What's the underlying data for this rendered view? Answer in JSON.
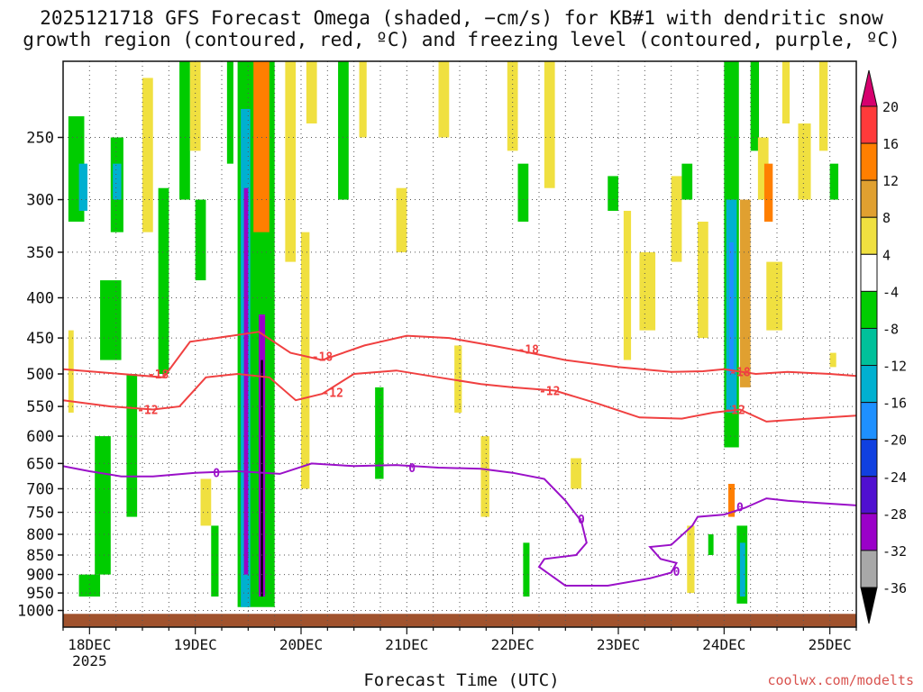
{
  "chart_data": {
    "type": "heatmap",
    "title_line1": "2025121718 GFS Forecast Omega (shaded, −cm/s) for KB#1 with dendritic snow",
    "title_line2": "growth region (contoured, red, ºC) and freezing level (contoured, purple, ºC)",
    "xlabel": "Forecast Time (UTC)",
    "x_ticks": [
      "18DEC",
      "19DEC",
      "20DEC",
      "21DEC",
      "22DEC",
      "23DEC",
      "24DEC",
      "25DEC"
    ],
    "x_tick_year": "2025",
    "x_range_days": [
      17.75,
      25.25
    ],
    "y_scale": "log",
    "y_range": [
      200,
      1050
    ],
    "y_ticks": [
      250,
      300,
      350,
      400,
      450,
      500,
      550,
      600,
      650,
      700,
      750,
      800,
      850,
      900,
      950,
      1000
    ],
    "y_tick_labels": [
      "250",
      "300",
      "350",
      "400",
      "450",
      "500",
      "550",
      "600",
      "650",
      "700",
      "750",
      "800",
      "850",
      "900",
      "950",
      "1000"
    ],
    "grid": true,
    "colorbar": {
      "levels": [
        -36,
        -32,
        -28,
        -24,
        -20,
        -16,
        -12,
        -8,
        -4,
        4,
        8,
        12,
        16,
        20
      ],
      "labels": [
        "20",
        "16",
        "12",
        "8",
        "4",
        "-4",
        "-8",
        "-12",
        "-16",
        "-20",
        "-24",
        "-28",
        "-32",
        "-36"
      ],
      "colors_top_to_bottom": [
        "#d6006e",
        "#ff3a3a",
        "#ff7f00",
        "#e0a030",
        "#f0e040",
        "#ffffff",
        "#00cc00",
        "#00c09a",
        "#00b0d0",
        "#1e90ff",
        "#1040e0",
        "#5010d0",
        "#9a00c8",
        "#a8a8a8",
        "#000000"
      ]
    },
    "series": [
      {
        "name": "-18",
        "color": "#f04040",
        "x": [
          17.75,
          18.3,
          18.7,
          18.95,
          19.2,
          19.6,
          19.9,
          20.2,
          20.6,
          21.0,
          21.4,
          21.8,
          22.1,
          22.5,
          23.0,
          23.5,
          23.8,
          24.0,
          24.3,
          24.6,
          25.0,
          25.25
        ],
        "y": [
          493,
          500,
          505,
          455,
          450,
          442,
          470,
          480,
          460,
          447,
          450,
          460,
          468,
          480,
          490,
          497,
          496,
          493,
          500,
          497,
          500,
          503
        ]
      },
      {
        "name": "-12",
        "color": "#f04040",
        "x": [
          17.75,
          18.2,
          18.6,
          18.85,
          19.1,
          19.4,
          19.7,
          19.95,
          20.2,
          20.5,
          20.9,
          21.3,
          21.7,
          22.0,
          22.4,
          22.8,
          23.2,
          23.6,
          23.9,
          24.15,
          24.4,
          24.8,
          25.25
        ],
        "y": [
          540,
          550,
          555,
          550,
          505,
          500,
          505,
          540,
          530,
          500,
          495,
          505,
          515,
          520,
          525,
          545,
          568,
          570,
          560,
          555,
          575,
          570,
          565
        ]
      },
      {
        "name": "0",
        "color": "#9a10c8",
        "x": [
          17.75,
          18.0,
          18.3,
          18.6,
          19.0,
          19.4,
          19.8,
          20.1,
          20.5,
          20.9,
          21.3,
          21.7,
          22.0,
          22.3,
          22.5,
          22.65,
          22.7,
          22.6,
          22.3,
          22.25,
          22.5,
          22.9,
          23.3,
          23.5,
          23.55,
          23.4,
          23.3,
          23.5,
          23.7,
          23.75,
          24.0,
          24.2,
          24.4,
          24.6,
          24.9,
          25.25
        ],
        "y": [
          655,
          665,
          675,
          675,
          668,
          665,
          670,
          650,
          655,
          653,
          658,
          660,
          668,
          680,
          725,
          770,
          820,
          850,
          860,
          880,
          930,
          930,
          910,
          895,
          870,
          860,
          830,
          825,
          780,
          760,
          755,
          740,
          720,
          725,
          730,
          735
        ]
      }
    ],
    "contour_labels": [
      {
        "text": "-18",
        "x": 18.65,
        "y": 500
      },
      {
        "text": "-18",
        "x": 20.2,
        "y": 475
      },
      {
        "text": "-18",
        "x": 22.15,
        "y": 465
      },
      {
        "text": "-18",
        "x": 24.15,
        "y": 497
      },
      {
        "text": "-12",
        "x": 18.55,
        "y": 555
      },
      {
        "text": "-12",
        "x": 20.3,
        "y": 528
      },
      {
        "text": "-12",
        "x": 22.35,
        "y": 525
      },
      {
        "text": "-12",
        "x": 24.1,
        "y": 555
      },
      {
        "text": "0",
        "x": 19.2,
        "y": 668
      },
      {
        "text": "0",
        "x": 21.05,
        "y": 658
      },
      {
        "text": "0",
        "x": 22.65,
        "y": 765
      },
      {
        "text": "0",
        "x": 23.55,
        "y": 892
      },
      {
        "text": "0",
        "x": 24.15,
        "y": 738
      }
    ],
    "shaded_cells": [
      {
        "x0": 17.8,
        "x1": 17.95,
        "p0": 235,
        "p1": 320,
        "v": -6
      },
      {
        "x0": 17.9,
        "x1": 17.98,
        "p0": 270,
        "p1": 310,
        "v": -13
      },
      {
        "x0": 17.8,
        "x1": 17.85,
        "p0": 440,
        "p1": 560,
        "v": 6
      },
      {
        "x0": 18.05,
        "x1": 18.2,
        "p0": 600,
        "p1": 900,
        "v": -6
      },
      {
        "x0": 18.1,
        "x1": 18.3,
        "p0": 380,
        "p1": 480,
        "v": -6
      },
      {
        "x0": 17.9,
        "x1": 18.1,
        "p0": 900,
        "p1": 960,
        "v": -6
      },
      {
        "x0": 18.2,
        "x1": 18.32,
        "p0": 250,
        "p1": 330,
        "v": -6
      },
      {
        "x0": 18.22,
        "x1": 18.3,
        "p0": 270,
        "p1": 300,
        "v": -14
      },
      {
        "x0": 18.35,
        "x1": 18.45,
        "p0": 500,
        "p1": 760,
        "v": -6
      },
      {
        "x0": 18.5,
        "x1": 18.6,
        "p0": 210,
        "p1": 330,
        "v": 5
      },
      {
        "x0": 18.65,
        "x1": 18.75,
        "p0": 290,
        "p1": 500,
        "v": -6
      },
      {
        "x0": 18.85,
        "x1": 18.95,
        "p0": 200,
        "p1": 300,
        "v": -6
      },
      {
        "x0": 18.95,
        "x1": 19.05,
        "p0": 200,
        "p1": 260,
        "v": 5
      },
      {
        "x0": 19.0,
        "x1": 19.1,
        "p0": 300,
        "p1": 380,
        "v": -6
      },
      {
        "x0": 19.05,
        "x1": 19.15,
        "p0": 680,
        "p1": 780,
        "v": 5
      },
      {
        "x0": 19.15,
        "x1": 19.22,
        "p0": 780,
        "p1": 960,
        "v": -6
      },
      {
        "x0": 19.3,
        "x1": 19.36,
        "p0": 200,
        "p1": 270,
        "v": -6
      },
      {
        "x0": 19.4,
        "x1": 19.75,
        "p0": 200,
        "p1": 990,
        "v": -6
      },
      {
        "x0": 19.43,
        "x1": 19.52,
        "p0": 230,
        "p1": 990,
        "v": -13
      },
      {
        "x0": 19.46,
        "x1": 19.5,
        "p0": 290,
        "p1": 900,
        "v": -30
      },
      {
        "x0": 19.55,
        "x1": 19.7,
        "p0": 200,
        "p1": 330,
        "v": 14
      },
      {
        "x0": 19.6,
        "x1": 19.66,
        "p0": 420,
        "p1": 960,
        "v": -30
      },
      {
        "x0": 19.62,
        "x1": 19.64,
        "p0": 480,
        "p1": 960,
        "v": -38
      },
      {
        "x0": 19.85,
        "x1": 19.95,
        "p0": 200,
        "p1": 360,
        "v": 5
      },
      {
        "x0": 20.0,
        "x1": 20.08,
        "p0": 330,
        "p1": 700,
        "v": 5
      },
      {
        "x0": 20.05,
        "x1": 20.15,
        "p0": 200,
        "p1": 240,
        "v": 5
      },
      {
        "x0": 20.35,
        "x1": 20.45,
        "p0": 200,
        "p1": 300,
        "v": -6
      },
      {
        "x0": 20.55,
        "x1": 20.62,
        "p0": 200,
        "p1": 250,
        "v": 5
      },
      {
        "x0": 20.7,
        "x1": 20.78,
        "p0": 520,
        "p1": 680,
        "v": -6
      },
      {
        "x0": 20.9,
        "x1": 21.0,
        "p0": 290,
        "p1": 350,
        "v": 5
      },
      {
        "x0": 21.3,
        "x1": 21.4,
        "p0": 200,
        "p1": 250,
        "v": 5
      },
      {
        "x0": 21.45,
        "x1": 21.52,
        "p0": 460,
        "p1": 560,
        "v": 5
      },
      {
        "x0": 21.7,
        "x1": 21.78,
        "p0": 600,
        "p1": 760,
        "v": 5
      },
      {
        "x0": 21.95,
        "x1": 22.05,
        "p0": 200,
        "p1": 260,
        "v": 5
      },
      {
        "x0": 22.05,
        "x1": 22.15,
        "p0": 270,
        "p1": 320,
        "v": -6
      },
      {
        "x0": 22.1,
        "x1": 22.16,
        "p0": 820,
        "p1": 960,
        "v": -6
      },
      {
        "x0": 22.3,
        "x1": 22.4,
        "p0": 200,
        "p1": 290,
        "v": 5
      },
      {
        "x0": 22.55,
        "x1": 22.65,
        "p0": 640,
        "p1": 700,
        "v": 5
      },
      {
        "x0": 22.9,
        "x1": 23.0,
        "p0": 280,
        "p1": 310,
        "v": -6
      },
      {
        "x0": 23.05,
        "x1": 23.12,
        "p0": 310,
        "p1": 480,
        "v": 5
      },
      {
        "x0": 23.2,
        "x1": 23.35,
        "p0": 350,
        "p1": 440,
        "v": 5
      },
      {
        "x0": 23.5,
        "x1": 23.6,
        "p0": 280,
        "p1": 360,
        "v": 5
      },
      {
        "x0": 23.6,
        "x1": 23.7,
        "p0": 270,
        "p1": 300,
        "v": -6
      },
      {
        "x0": 23.65,
        "x1": 23.72,
        "p0": 780,
        "p1": 950,
        "v": 5
      },
      {
        "x0": 23.75,
        "x1": 23.85,
        "p0": 320,
        "p1": 450,
        "v": 5
      },
      {
        "x0": 23.85,
        "x1": 23.9,
        "p0": 800,
        "p1": 850,
        "v": -6
      },
      {
        "x0": 24.0,
        "x1": 24.14,
        "p0": 200,
        "p1": 620,
        "v": -6
      },
      {
        "x0": 24.02,
        "x1": 24.12,
        "p0": 300,
        "p1": 560,
        "v": -14
      },
      {
        "x0": 24.05,
        "x1": 24.09,
        "p0": 340,
        "p1": 500,
        "v": -17
      },
      {
        "x0": 24.04,
        "x1": 24.1,
        "p0": 690,
        "p1": 760,
        "v": 14
      },
      {
        "x0": 24.15,
        "x1": 24.25,
        "p0": 300,
        "p1": 520,
        "v": 9
      },
      {
        "x0": 24.12,
        "x1": 24.22,
        "p0": 780,
        "p1": 980,
        "v": -6
      },
      {
        "x0": 24.15,
        "x1": 24.2,
        "p0": 820,
        "p1": 960,
        "v": -13
      },
      {
        "x0": 24.25,
        "x1": 24.33,
        "p0": 200,
        "p1": 260,
        "v": -6
      },
      {
        "x0": 24.32,
        "x1": 24.42,
        "p0": 250,
        "p1": 300,
        "v": 5
      },
      {
        "x0": 24.38,
        "x1": 24.46,
        "p0": 270,
        "p1": 320,
        "v": 14
      },
      {
        "x0": 24.4,
        "x1": 24.55,
        "p0": 360,
        "p1": 440,
        "v": 5
      },
      {
        "x0": 24.55,
        "x1": 24.62,
        "p0": 200,
        "p1": 240,
        "v": 5
      },
      {
        "x0": 24.7,
        "x1": 24.82,
        "p0": 240,
        "p1": 300,
        "v": 5
      },
      {
        "x0": 24.9,
        "x1": 24.98,
        "p0": 200,
        "p1": 260,
        "v": 5
      },
      {
        "x0": 25.0,
        "x1": 25.08,
        "p0": 270,
        "p1": 300,
        "v": -6
      },
      {
        "x0": 25.0,
        "x1": 25.06,
        "p0": 470,
        "p1": 490,
        "v": 5
      }
    ],
    "terrain_color": "#a0522d"
  },
  "credit": "coolwx.com/modelts"
}
